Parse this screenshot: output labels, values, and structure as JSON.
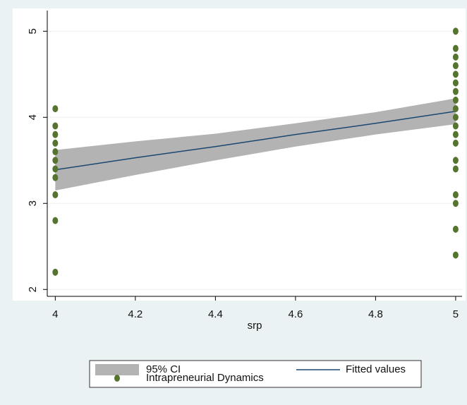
{
  "chart_data": {
    "type": "scatter",
    "x_label": "srp",
    "xlim": [
      3.98,
      5.016
    ],
    "xticks": [
      4,
      4.2,
      4.4,
      4.6,
      4.8,
      5
    ],
    "ylim": [
      1.92,
      5.24
    ],
    "yticks": [
      2,
      3,
      4,
      5
    ],
    "grid": true,
    "series": [
      {
        "name": "95% CI",
        "type": "area",
        "color": "#b3b3b3",
        "x": [
          4,
          4.2,
          4.4,
          4.6,
          4.8,
          5
        ],
        "lower": [
          3.15,
          3.33,
          3.5,
          3.66,
          3.8,
          3.92
        ],
        "upper": [
          3.62,
          3.72,
          3.81,
          3.93,
          4.06,
          4.22
        ]
      },
      {
        "name": "Fitted values",
        "type": "line",
        "color": "#1a476f",
        "x": [
          4,
          4.2,
          4.4,
          4.6,
          4.8,
          5
        ],
        "values": [
          3.39,
          3.53,
          3.66,
          3.8,
          3.93,
          4.07
        ]
      },
      {
        "name": "Intrapreneurial Dynamics",
        "type": "scatter",
        "color": "#55752f",
        "x": [
          4,
          4,
          4,
          4,
          4,
          4,
          4,
          4,
          4,
          4,
          4,
          5,
          5,
          5,
          5,
          5,
          5,
          5,
          5,
          5,
          5,
          5,
          5,
          5,
          5,
          5,
          5,
          5,
          5,
          5
        ],
        "values": [
          4.1,
          3.9,
          3.8,
          3.7,
          3.6,
          3.5,
          3.4,
          3.3,
          3.1,
          2.8,
          2.2,
          5.0,
          4.8,
          4.7,
          4.6,
          4.5,
          4.4,
          4.3,
          4.2,
          4.1,
          4.0,
          3.9,
          3.8,
          3.7,
          3.5,
          3.4,
          3.1,
          3.0,
          2.7,
          2.4
        ]
      }
    ]
  }
}
